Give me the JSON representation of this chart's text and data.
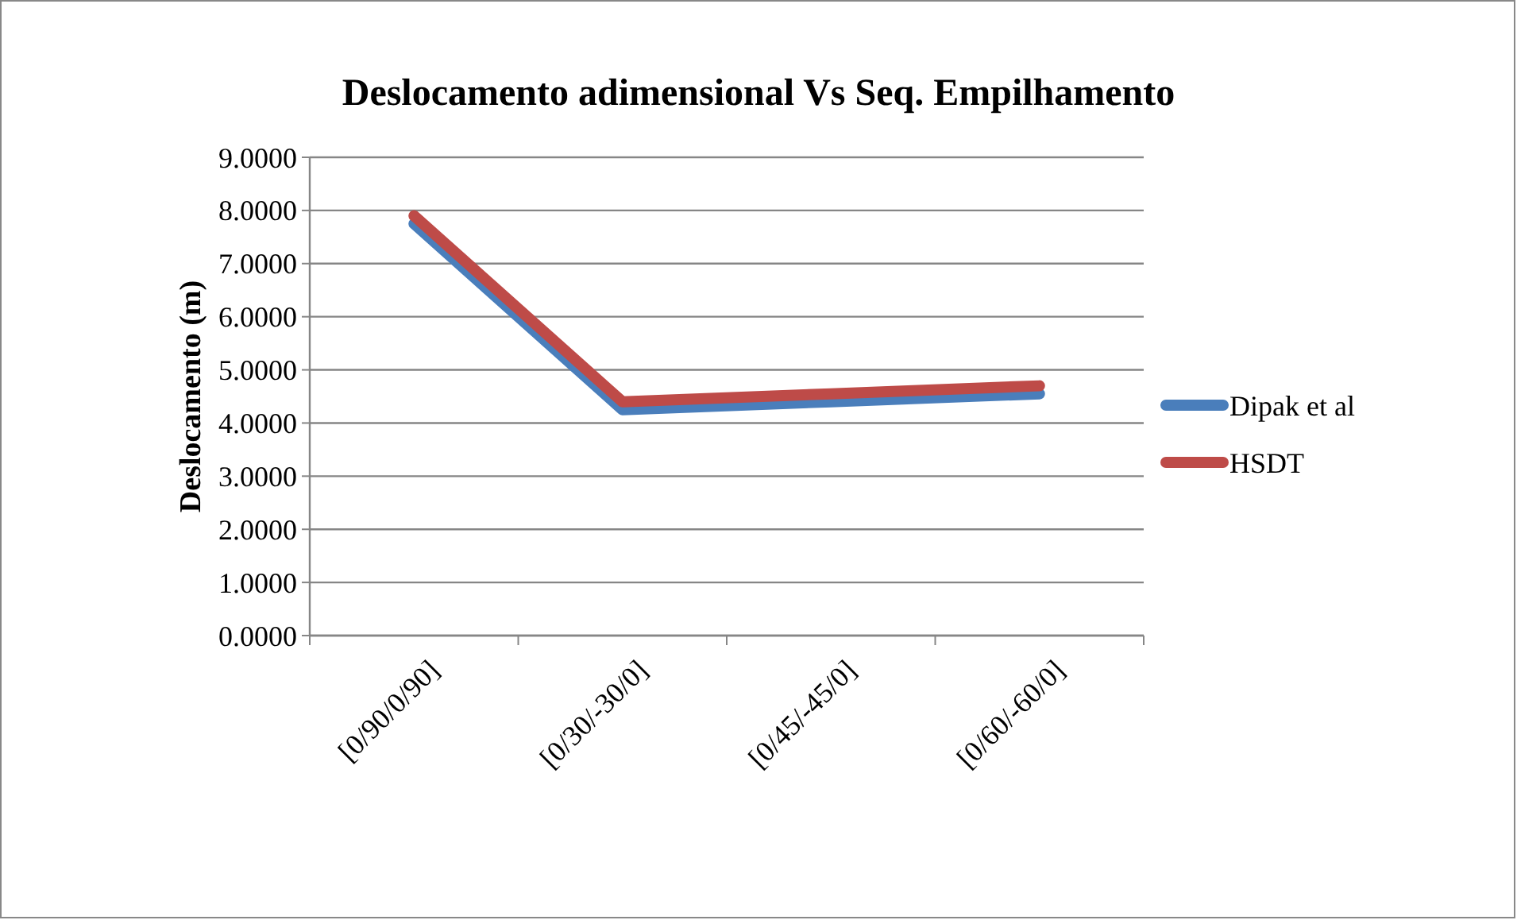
{
  "chart_data": {
    "type": "line",
    "title": "Deslocamento adimensional Vs Seq. Empilhamento",
    "ylabel": "Deslocamento (m)",
    "categories": [
      "[0/90/0/90]",
      "[0/30/-30/0]",
      "[0/45/-45/0]",
      "[0/60/-60/0]"
    ],
    "series": [
      {
        "name": "Dipak et al",
        "color": "#4a7ebb",
        "values": [
          7.75,
          4.25,
          4.4,
          4.55
        ]
      },
      {
        "name": "HSDT",
        "color": "#be4b48",
        "values": [
          7.9,
          4.4,
          4.55,
          4.7
        ]
      }
    ],
    "ylim": [
      0,
      9
    ],
    "yticks": [
      {
        "value": 0,
        "label": "0.0000"
      },
      {
        "value": 1,
        "label": "1.0000"
      },
      {
        "value": 2,
        "label": "2.0000"
      },
      {
        "value": 3,
        "label": "3.0000"
      },
      {
        "value": 4,
        "label": "4.0000"
      },
      {
        "value": 5,
        "label": "5.0000"
      },
      {
        "value": 6,
        "label": "6.0000"
      },
      {
        "value": 7,
        "label": "7.0000"
      },
      {
        "value": 8,
        "label": "8.0000"
      },
      {
        "value": 9,
        "label": "9.0000"
      }
    ],
    "grid": "y",
    "legend": "right",
    "marker": "none",
    "line_style": "solid"
  }
}
